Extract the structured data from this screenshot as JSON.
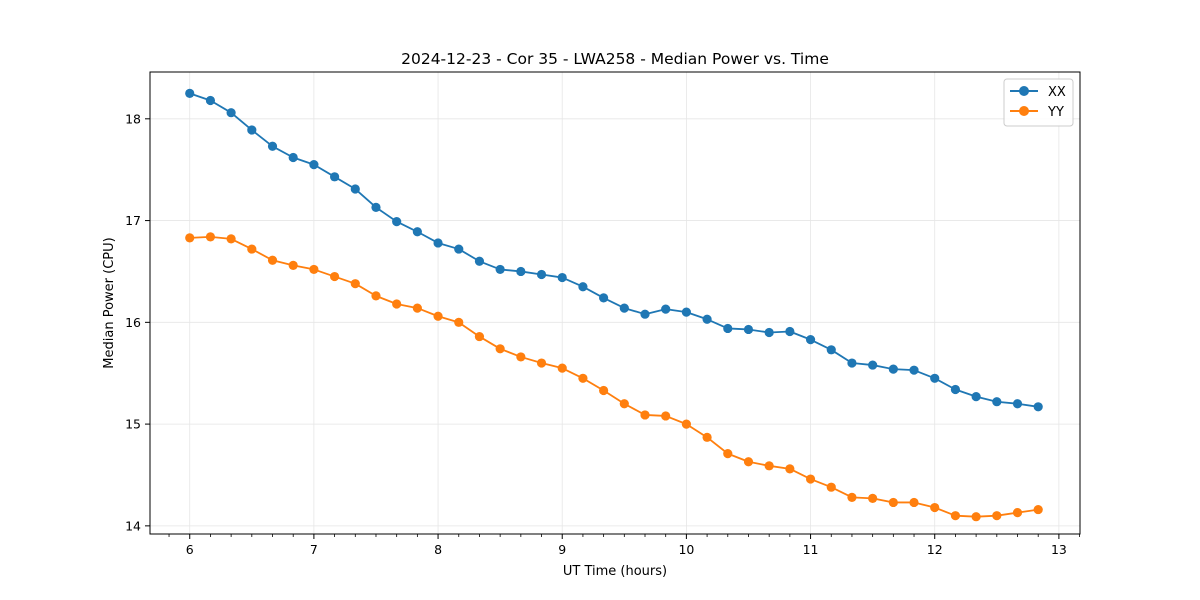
{
  "chart_data": {
    "type": "line",
    "title": "2024-12-23 - Cor 35 - LWA258 - Median Power vs. Time",
    "xlabel": "UT Time (hours)",
    "ylabel": "Median Power (CPU)",
    "xlim": [
      5.68,
      13.17
    ],
    "ylim": [
      13.92,
      18.46
    ],
    "xticks": [
      6,
      7,
      8,
      9,
      10,
      11,
      12,
      13
    ],
    "yticks": [
      14,
      15,
      16,
      17,
      18
    ],
    "grid": true,
    "legend_position": "top-right",
    "x": [
      6.0,
      6.1667,
      6.3333,
      6.5,
      6.6667,
      6.8333,
      7.0,
      7.1667,
      7.3333,
      7.5,
      7.6667,
      7.8333,
      8.0,
      8.1667,
      8.3333,
      8.5,
      8.6667,
      8.8333,
      9.0,
      9.1667,
      9.3333,
      9.5,
      9.6667,
      9.8333,
      10.0,
      10.1667,
      10.3333,
      10.5,
      10.6667,
      10.8333,
      11.0,
      11.1667,
      11.3333,
      11.5,
      11.6667,
      11.8333,
      12.0,
      12.1667,
      12.3333,
      12.5,
      12.6667,
      12.8333
    ],
    "series": [
      {
        "name": "XX",
        "color": "#1f77b4",
        "values": [
          18.25,
          18.18,
          18.06,
          17.89,
          17.73,
          17.62,
          17.55,
          17.43,
          17.31,
          17.13,
          16.99,
          16.89,
          16.78,
          16.72,
          16.6,
          16.52,
          16.5,
          16.47,
          16.44,
          16.35,
          16.24,
          16.14,
          16.08,
          16.13,
          16.1,
          16.03,
          15.94,
          15.93,
          15.9,
          15.91,
          15.83,
          15.73,
          15.6,
          15.58,
          15.54,
          15.53,
          15.45,
          15.34,
          15.27,
          15.22,
          15.2,
          15.17
        ]
      },
      {
        "name": "YY",
        "color": "#ff7f0e",
        "values": [
          16.83,
          16.84,
          16.82,
          16.72,
          16.61,
          16.56,
          16.52,
          16.45,
          16.38,
          16.26,
          16.18,
          16.14,
          16.06,
          16.0,
          15.86,
          15.74,
          15.66,
          15.6,
          15.55,
          15.45,
          15.33,
          15.2,
          15.09,
          15.08,
          15.0,
          14.87,
          14.71,
          14.63,
          14.59,
          14.56,
          14.46,
          14.38,
          14.28,
          14.27,
          14.23,
          14.23,
          14.18,
          14.1,
          14.09,
          14.1,
          14.13,
          14.16
        ]
      }
    ]
  }
}
